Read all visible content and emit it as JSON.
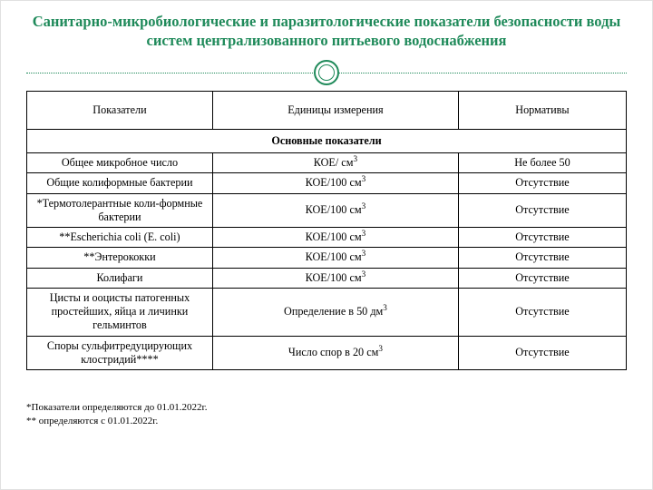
{
  "title_text": "Санитарно-микробиологические и паразитологические показатели безопасности воды систем централизованного питьевого водоснабжения",
  "colors": {
    "title": "#1f8a5a",
    "divider": "#1f8a5a",
    "border": "#000000",
    "text": "#000000",
    "background": "#ffffff"
  },
  "table": {
    "columns": [
      "Показатели",
      "Единицы измерения",
      "Нормативы"
    ],
    "column_widths_pct": [
      31,
      41,
      28
    ],
    "header_fontsize_pt": 12,
    "cell_fontsize_pt": 12,
    "section_label": "Основные показатели",
    "rows": [
      {
        "c0": "Общее микробное число",
        "c1": "КОЕ/ см",
        "c1_sup": "3",
        "c2": "Не более 50"
      },
      {
        "c0": "Общие колиформные бактерии",
        "c1": "КОЕ/100 см",
        "c1_sup": "3",
        "c2": "Отсутствие"
      },
      {
        "c0": "*Термотолерантные коли-формные бактерии",
        "c1": "КОЕ/100 см",
        "c1_sup": "3",
        "c2": "Отсутствие"
      },
      {
        "c0": "**Escherichia coli (E. coli)",
        "c1": "КОЕ/100 см",
        "c1_sup": "3",
        "c2": "Отсутствие"
      },
      {
        "c0": "**Энтерококки",
        "c1": "КОЕ/100 см",
        "c1_sup": "3",
        "c2": "Отсутствие"
      },
      {
        "c0": "Колифаги",
        "c1": "КОЕ/100 см",
        "c1_sup": "3",
        "c2": "Отсутствие"
      },
      {
        "c0": "Цисты и ооцисты патогенных простейших, яйца и личинки гельминтов",
        "c1": "Определение в 50 дм",
        "c1_sup": "3",
        "c2": "Отсутствие"
      },
      {
        "c0": "Споры сульфитредуцирующих клостридий****",
        "c1": "Число спор в 20 см",
        "c1_sup": "3",
        "c2": "Отсутствие"
      }
    ]
  },
  "footnotes": {
    "line1": "*Показатели определяются до 01.01.2022г.",
    "line2": "** определяются с 01.01.2022г."
  },
  "typography": {
    "title_fontsize_pt": 16,
    "footnote_fontsize_pt": 11,
    "font_family": "Georgia / Times-like serif"
  }
}
